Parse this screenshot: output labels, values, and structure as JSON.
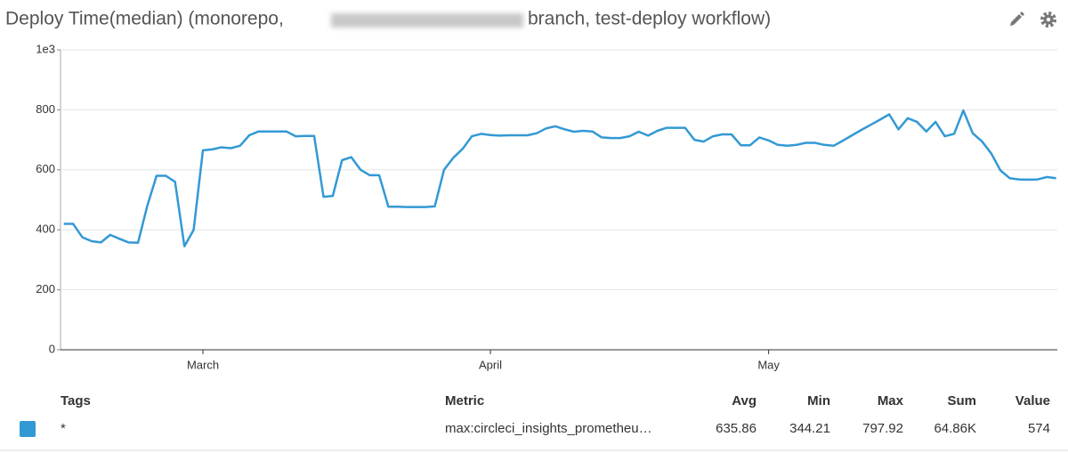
{
  "chart_data": {
    "type": "line",
    "title": [
      "Deploy Time(median) (monorepo,",
      "branch, test-deploy workflow)"
    ],
    "categories": [
      null,
      null,
      null,
      null,
      null,
      null,
      null,
      null,
      null,
      null,
      null,
      null,
      null,
      null,
      null,
      "March",
      null,
      null,
      null,
      null,
      null,
      null,
      null,
      null,
      null,
      null,
      null,
      null,
      null,
      null,
      null,
      null,
      null,
      null,
      null,
      null,
      null,
      null,
      null,
      null,
      null,
      null,
      null,
      null,
      null,
      null,
      "April",
      null,
      null,
      null,
      null,
      null,
      null,
      null,
      null,
      null,
      null,
      null,
      null,
      null,
      null,
      null,
      null,
      null,
      null,
      null,
      null,
      null,
      null,
      null,
      null,
      null,
      null,
      null,
      null,
      null,
      "May",
      null,
      null,
      null,
      null,
      null,
      null,
      null,
      null,
      null,
      null,
      null,
      null,
      null,
      null,
      null,
      null,
      null,
      null,
      null,
      null,
      null,
      null,
      null,
      null,
      null,
      null,
      null,
      null,
      null,
      null,
      null
    ],
    "series": [
      {
        "name": "*",
        "color": "#3399d4",
        "values": [
          420,
          420,
          375,
          362,
          358,
          383,
          370,
          358,
          357,
          480,
          580,
          580,
          560,
          345,
          400,
          665,
          668,
          675,
          672,
          680,
          715,
          728,
          728,
          728,
          728,
          712,
          713,
          713,
          510,
          513,
          632,
          642,
          600,
          582,
          582,
          477,
          477,
          476,
          476,
          476,
          478,
          600,
          640,
          670,
          712,
          720,
          716,
          714,
          715,
          715,
          715,
          722,
          738,
          745,
          735,
          727,
          730,
          728,
          708,
          706,
          706,
          712,
          727,
          714,
          730,
          740,
          740,
          740,
          700,
          694,
          712,
          718,
          718,
          682,
          682,
          708,
          698,
          683,
          680,
          683,
          690,
          690,
          683,
          680,
          697,
          715,
          733,
          750,
          767,
          785,
          735,
          772,
          760,
          728,
          760,
          712,
          720,
          798,
          722,
          695,
          655,
          598,
          572,
          568,
          567,
          568,
          576,
          572
        ]
      }
    ],
    "ylim": [
      0,
      1000
    ],
    "yticks": [
      0,
      200,
      400,
      600,
      800,
      {
        "value": 1000,
        "label": "1e3"
      }
    ],
    "grid": true,
    "legend": {
      "headers": [
        "Tags",
        "Metric",
        "Avg",
        "Min",
        "Max",
        "Sum",
        "Value"
      ],
      "rows": [
        [
          "*",
          "max:circleci_insights_prometheu…",
          "635.86",
          "344.21",
          "797.92",
          "64.86K",
          "574"
        ]
      ]
    }
  }
}
